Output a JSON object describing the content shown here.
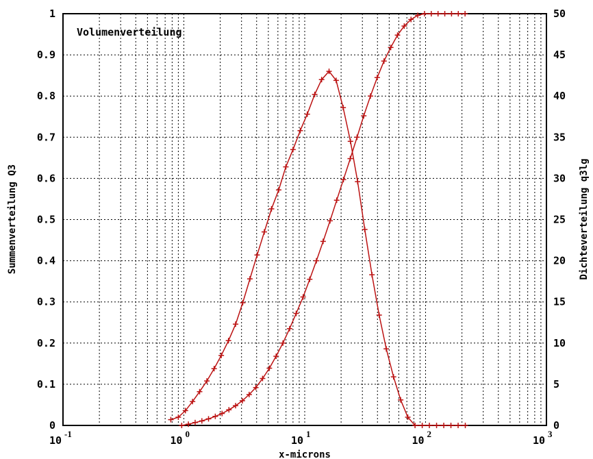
{
  "chart_data": {
    "type": "line",
    "title": "Volumenverteilung",
    "xlabel": "x-microns",
    "ylabel": "Summenverteilung Q3",
    "y2label": "Dichteverteilung q3lg",
    "xscale": "log",
    "xlim": [
      0.1,
      1000
    ],
    "ylim": [
      0,
      1
    ],
    "y2lim": [
      0,
      50
    ],
    "grid": true,
    "line_color": "#bb1111",
    "x_ticks": [
      {
        "base": "10",
        "exp": "-1"
      },
      {
        "base": "10",
        "exp": "0"
      },
      {
        "base": "10",
        "exp": "1"
      },
      {
        "base": "10",
        "exp": "2"
      },
      {
        "base": "10",
        "exp": "3"
      }
    ],
    "y_ticks": [
      "0",
      "0.1",
      "0.2",
      "0.3",
      "0.4",
      "0.5",
      "0.6",
      "0.7",
      "0.8",
      "0.9",
      "1"
    ],
    "y2_ticks": [
      "0",
      "5",
      "10",
      "15",
      "20",
      "25",
      "30",
      "35",
      "40",
      "45",
      "50"
    ],
    "series": [
      {
        "axis": "left",
        "x": [
          0.96,
          1.09,
          1.24,
          1.41,
          1.6,
          1.82,
          2.07,
          2.36,
          2.68,
          3.05,
          3.47,
          3.94,
          4.48,
          5.1,
          5.8,
          6.6,
          7.5,
          8.5,
          9.7,
          11.0,
          12.5,
          14.2,
          16.2,
          18.4,
          20.9,
          23.8,
          27.1,
          30.8,
          35.0,
          39.8,
          45.3,
          51.5,
          58.6,
          66.6,
          75.8,
          86.2,
          98.0,
          111.5,
          126.8,
          144.2,
          164.0,
          186.5,
          212.1
        ],
        "y": [
          0.0,
          0.003,
          0.007,
          0.011,
          0.016,
          0.022,
          0.029,
          0.038,
          0.048,
          0.06,
          0.075,
          0.092,
          0.114,
          0.139,
          0.168,
          0.2,
          0.235,
          0.272,
          0.312,
          0.355,
          0.4,
          0.447,
          0.497,
          0.547,
          0.597,
          0.648,
          0.7,
          0.752,
          0.8,
          0.845,
          0.885,
          0.918,
          0.948,
          0.97,
          0.986,
          0.996,
          1.0,
          1.0,
          1.0,
          1.0,
          1.0,
          1.0,
          1.0
        ]
      },
      {
        "axis": "right",
        "x": [
          0.78,
          0.9,
          1.03,
          1.18,
          1.35,
          1.55,
          1.78,
          2.04,
          2.34,
          2.68,
          3.07,
          3.52,
          4.04,
          4.63,
          5.31,
          6.09,
          6.98,
          8.0,
          9.18,
          10.5,
          12.1,
          13.8,
          15.9,
          18.2,
          20.8,
          23.9,
          27.4,
          31.4,
          36.0,
          41.3,
          47.3,
          54.3,
          62.2,
          71.3,
          81.8,
          93.8,
          107.5,
          123.3,
          141.4,
          162.1,
          185.9,
          213.1
        ],
        "y": [
          0.7,
          1.0,
          1.8,
          2.9,
          4.1,
          5.4,
          6.9,
          8.5,
          10.3,
          12.3,
          14.9,
          17.8,
          20.7,
          23.5,
          26.3,
          28.6,
          31.4,
          33.5,
          35.8,
          37.8,
          40.2,
          42.0,
          43.0,
          41.9,
          38.6,
          34.5,
          29.6,
          23.8,
          18.3,
          13.4,
          9.3,
          5.9,
          3.1,
          1.0,
          0.0,
          0.0,
          0.0,
          0.0,
          0.0,
          0.0,
          0.0,
          0.0
        ]
      }
    ]
  }
}
